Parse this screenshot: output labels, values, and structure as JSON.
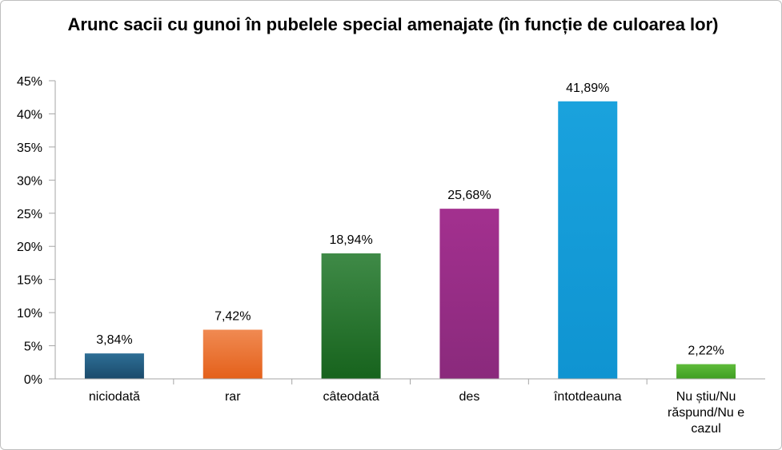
{
  "chart_data": {
    "type": "bar",
    "title": "Arunc sacii cu gunoi în pubelele special amenajate (în funcție de culoarea lor)",
    "categories": [
      "niciodată",
      "rar",
      "câteodată",
      "des",
      "întotdeauna",
      "Nu știu/Nu răspund/Nu e cazul"
    ],
    "category_lines": [
      [
        "niciodată"
      ],
      [
        "rar"
      ],
      [
        "câteodată"
      ],
      [
        "des"
      ],
      [
        "întotdeauna"
      ],
      [
        "Nu știu/Nu",
        "răspund/Nu e",
        "cazul"
      ]
    ],
    "values": [
      3.84,
      7.42,
      18.94,
      25.68,
      41.89,
      2.22
    ],
    "data_labels": [
      "3,84%",
      "7,42%",
      "18,94%",
      "25,68%",
      "41,89%",
      "2,22%"
    ],
    "ylim": [
      0,
      45
    ],
    "yticks": [
      0,
      5,
      10,
      15,
      20,
      25,
      30,
      35,
      40,
      45
    ],
    "ytick_labels": [
      "0%",
      "5%",
      "10%",
      "15%",
      "20%",
      "25%",
      "30%",
      "35%",
      "40%",
      "45%"
    ],
    "grid": false,
    "legend": "none",
    "bar_colors": [
      [
        "#2e6f96",
        "#1b4a6b"
      ],
      [
        "#f08a52",
        "#e4601a"
      ],
      [
        "#3f8a47",
        "#17631d"
      ],
      [
        "#a3308f",
        "#8a2a7c"
      ],
      [
        "#1aa2dd",
        "#0f94d1"
      ],
      [
        "#5fbb3b",
        "#3f9f22"
      ]
    ],
    "axis_color": "#a6a6a6"
  }
}
